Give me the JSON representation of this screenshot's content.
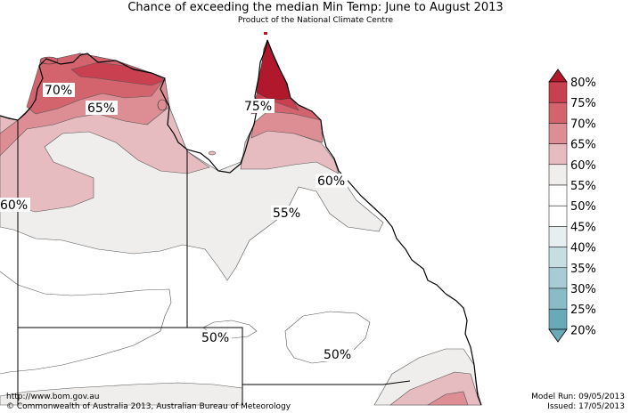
{
  "header": {
    "title": "Chance of exceeding the median Min Temp: June to August 2013",
    "subtitle": "Product of the National Climate Centre"
  },
  "map": {
    "zone_labels": [
      "70%",
      "65%",
      "75%",
      "60%",
      "60%",
      "55%",
      "50%",
      "50%"
    ]
  },
  "legend": {
    "ticks": [
      "80%",
      "75%",
      "70%",
      "65%",
      "60%",
      "55%",
      "50%",
      "45%",
      "40%",
      "35%",
      "30%",
      "25%",
      "20%"
    ],
    "colors": {
      "above_80": "#b2182b",
      "75_80": "#c94050",
      "70_75": "#d3646e",
      "65_70": "#dc8e94",
      "60_65": "#e6bcc0",
      "55_60": "#efeeec",
      "50_55": "#ffffff",
      "45_50": "#ffffff",
      "40_45": "#e6eef0",
      "35_40": "#c6dde2",
      "30_35": "#a8ccd4",
      "25_30": "#8abcc6",
      "below_25": "#6aaab8"
    }
  },
  "footer": {
    "url": "http://www.bom.gov.au",
    "copyright": "©  Commonwealth of Australia 2013, Australian Bureau of Meteorology",
    "model_run": "Model Run: 09/05/2013",
    "issued": "Issued: 17/05/2013"
  }
}
